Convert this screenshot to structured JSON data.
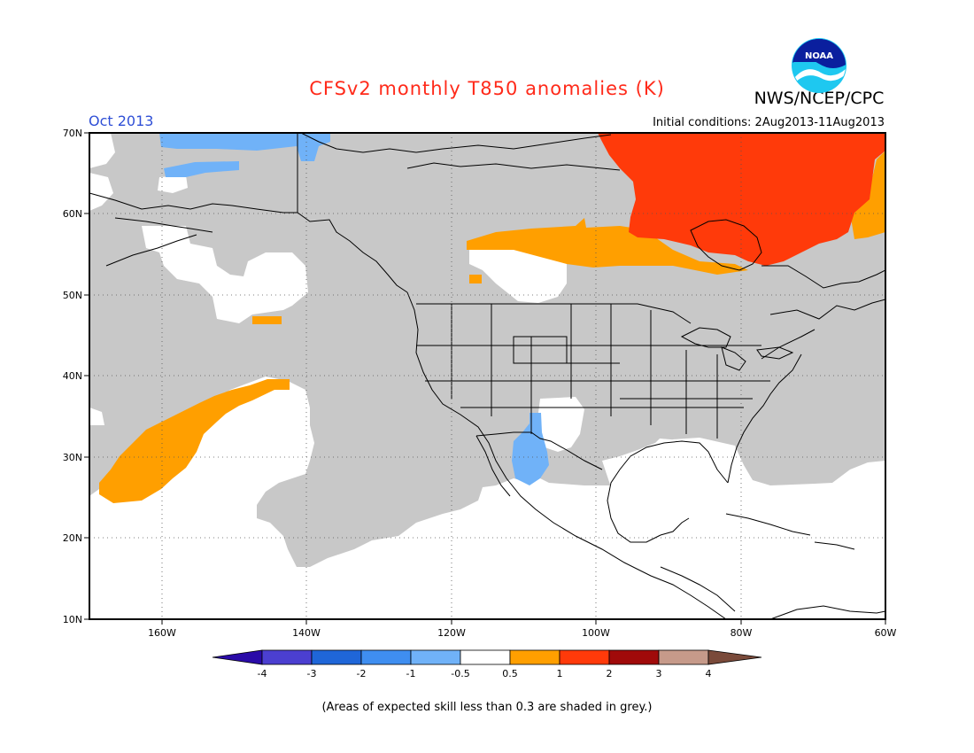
{
  "header": {
    "title": "CFSv2 monthly T850 anomalies (K)",
    "agency": "NWS/NCEP/CPC",
    "valid_month": "Oct 2013",
    "initial_conditions": "Initial conditions: 2Aug2013-11Aug2013"
  },
  "logo": {
    "text": "NOAA"
  },
  "map": {
    "lon_range": [
      -170,
      -60
    ],
    "lat_range": [
      10,
      70
    ],
    "lat_labels": [
      "70N",
      "60N",
      "50N",
      "40N",
      "30N",
      "20N",
      "10N"
    ],
    "lon_labels": [
      "160W",
      "140W",
      "120W",
      "100W",
      "80W",
      "60W"
    ],
    "gridlines": "dotted",
    "colors": {
      "skill_shade": "#c8c8c8",
      "land": "#ffffff",
      "outline": "#000000"
    }
  },
  "colorbar": {
    "labels": [
      "-4",
      "-3",
      "-2",
      "-1",
      "-0.5",
      "0.5",
      "1",
      "2",
      "3",
      "4"
    ],
    "colors": [
      "#2a0ba8",
      "#4b3fd0",
      "#1f66d8",
      "#3f8ef0",
      "#70b2f8",
      "#ffffff",
      "#ff9f00",
      "#ff3a0a",
      "#a00a0a",
      "#c69a8a",
      "#7a4a3a"
    ]
  },
  "chart_data": {
    "type": "heatmap",
    "variable": "T850 anomaly",
    "units": "K",
    "shaded_areas_note": "(Areas of expected skill less than 0.3 are shaded in grey.)",
    "regions": [
      {
        "region": "Hudson Bay / eastern Canada",
        "category": "1 to 2"
      },
      {
        "region": "Canadian prairies to western Hudson Bay (southern fringe)",
        "category": "0.5 to 1"
      },
      {
        "region": "Labrador coast",
        "category": "0.5 to 1"
      },
      {
        "region": "Central North Pacific (diagonal band)",
        "category": "0.5 to 1"
      },
      {
        "region": "Gulf of Alaska (small patch)",
        "category": "0.5 to 1"
      },
      {
        "region": "Arizona / New Mexico / Sonora",
        "category": "-1 to -0.5"
      },
      {
        "region": "Arctic coast north of Alaska",
        "category": "-1 to -0.5"
      },
      {
        "region": "Bering Sea (small patch)",
        "category": "-1 to -0.5"
      }
    ]
  }
}
